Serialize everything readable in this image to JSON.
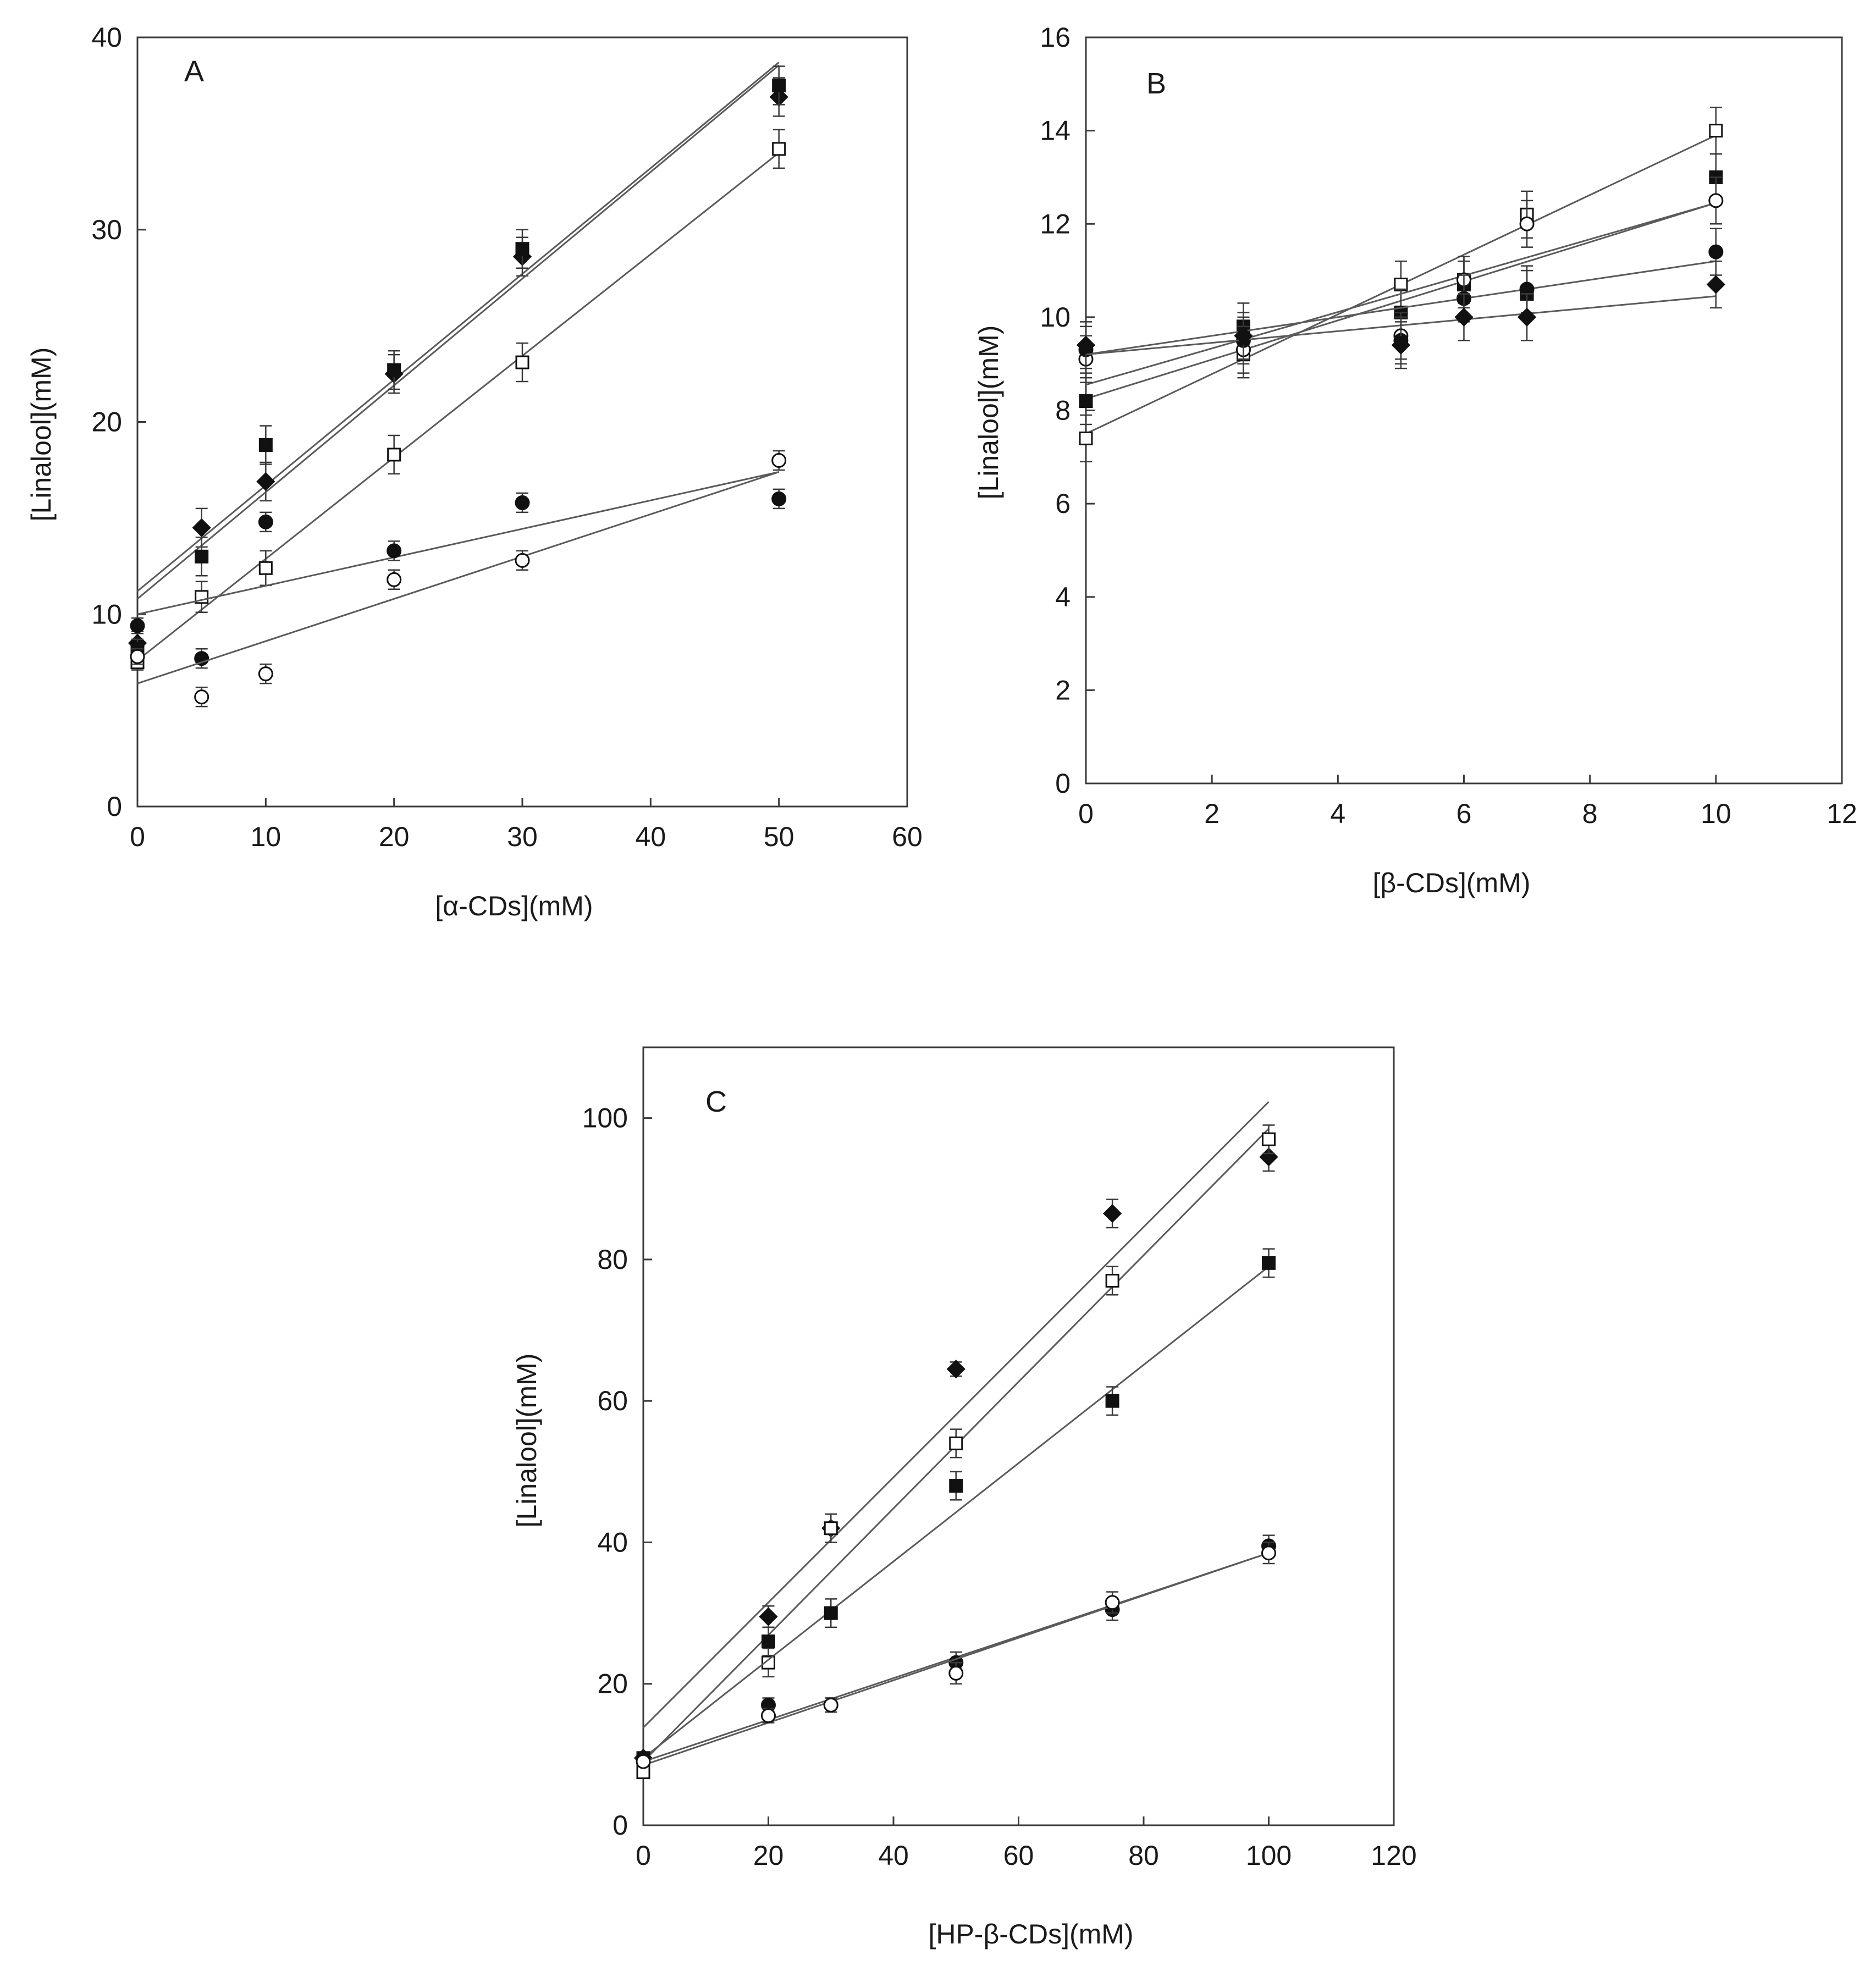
{
  "chart_data": [
    {
      "type": "scatter",
      "panel": "A",
      "xlabel": "[α-CDs](mM)",
      "ylabel": "[Linalool](mM)",
      "xlim": [
        0,
        60
      ],
      "ylim": [
        0,
        40
      ],
      "xticks": [
        0,
        10,
        20,
        30,
        40,
        50,
        60
      ],
      "yticks": [
        0,
        10,
        20,
        30,
        40
      ],
      "grid": false,
      "series": [
        {
          "name": "filled-diamond",
          "marker": "diamond",
          "filled": true,
          "x": [
            0,
            5,
            10,
            20,
            30,
            50
          ],
          "y": [
            8.5,
            14.5,
            16.9,
            22.5,
            28.6,
            36.9
          ],
          "err": [
            0.6,
            1.0,
            1.0,
            1.0,
            1.0,
            1.0
          ],
          "fit": [
            11.2,
            0.55
          ]
        },
        {
          "name": "filled-square",
          "marker": "square",
          "filled": true,
          "x": [
            0,
            5,
            10,
            20,
            30,
            50
          ],
          "y": [
            8.2,
            13.0,
            18.8,
            22.7,
            29.0,
            37.5
          ],
          "err": [
            0.5,
            1.0,
            1.0,
            1.0,
            1.0,
            1.0
          ],
          "fit": [
            10.8,
            0.555
          ]
        },
        {
          "name": "open-square",
          "marker": "square",
          "filled": false,
          "x": [
            0,
            5,
            10,
            20,
            30,
            50
          ],
          "y": [
            7.5,
            10.9,
            12.4,
            18.3,
            23.1,
            34.2
          ],
          "err": [
            0.4,
            0.8,
            0.9,
            1.0,
            1.0,
            1.0
          ],
          "fit": [
            7.6,
            0.528
          ]
        },
        {
          "name": "filled-circle",
          "marker": "circle",
          "filled": true,
          "x": [
            0,
            5,
            10,
            20,
            30,
            50
          ],
          "y": [
            9.4,
            7.7,
            14.8,
            13.3,
            15.8,
            16.0
          ],
          "err": [
            0.4,
            0.5,
            0.5,
            0.5,
            0.5,
            0.5
          ],
          "fit": [
            10.0,
            0.148
          ]
        },
        {
          "name": "open-circle",
          "marker": "circle",
          "filled": false,
          "x": [
            0,
            5,
            10,
            20,
            30,
            50
          ],
          "y": [
            7.8,
            5.7,
            6.9,
            11.8,
            12.8,
            18.0
          ],
          "err": [
            0.4,
            0.5,
            0.5,
            0.5,
            0.5,
            0.5
          ],
          "fit": [
            6.4,
            0.22
          ]
        }
      ]
    },
    {
      "type": "scatter",
      "panel": "B",
      "xlabel": "[β-CDs](mM)",
      "ylabel": "[Linalool](mM)",
      "xlim": [
        0,
        12
      ],
      "ylim": [
        0,
        16
      ],
      "xticks": [
        0,
        2,
        4,
        6,
        8,
        10,
        12
      ],
      "yticks": [
        0,
        2,
        4,
        6,
        8,
        10,
        12,
        14,
        16
      ],
      "grid": false,
      "series": [
        {
          "name": "open-square",
          "marker": "square",
          "filled": false,
          "x": [
            0,
            2.5,
            5,
            6,
            7,
            10
          ],
          "y": [
            7.4,
            9.2,
            10.7,
            10.8,
            12.2,
            14.0
          ],
          "err": [
            0.5,
            0.5,
            0.5,
            0.5,
            0.5,
            0.5
          ],
          "fit": [
            7.5,
            0.64
          ]
        },
        {
          "name": "filled-square",
          "marker": "square",
          "filled": true,
          "x": [
            0,
            2.5,
            5,
            6,
            7,
            10
          ],
          "y": [
            8.2,
            9.8,
            10.1,
            10.7,
            10.5,
            13.0
          ],
          "err": [
            0.5,
            0.5,
            0.5,
            0.5,
            0.5,
            0.5
          ],
          "fit": [
            8.25,
            0.42
          ]
        },
        {
          "name": "open-circle",
          "marker": "circle",
          "filled": false,
          "x": [
            0,
            2.5,
            5,
            6,
            7,
            10
          ],
          "y": [
            9.1,
            9.3,
            9.6,
            10.8,
            12.0,
            12.5
          ],
          "err": [
            0.5,
            0.5,
            0.5,
            0.5,
            0.5,
            0.5
          ],
          "fit": [
            8.55,
            0.39
          ]
        },
        {
          "name": "filled-circle",
          "marker": "circle",
          "filled": true,
          "x": [
            0,
            2.5,
            5,
            6,
            7,
            10
          ],
          "y": [
            9.3,
            9.5,
            9.5,
            10.4,
            10.6,
            11.4
          ],
          "err": [
            0.5,
            0.5,
            0.5,
            0.5,
            0.5,
            0.5
          ],
          "fit": [
            9.2,
            0.2
          ]
        },
        {
          "name": "filled-diamond",
          "marker": "diamond",
          "filled": true,
          "x": [
            0,
            2.5,
            5,
            6,
            7,
            10
          ],
          "y": [
            9.4,
            9.6,
            9.4,
            10.0,
            10.0,
            10.7
          ],
          "err": [
            0.5,
            0.5,
            0.5,
            0.5,
            0.5,
            0.5
          ],
          "fit": [
            9.2,
            0.125
          ]
        }
      ]
    },
    {
      "type": "scatter",
      "panel": "C",
      "xlabel": "[HP-β-CDs](mM)",
      "ylabel": "[Linalool](mM)",
      "xlim": [
        0,
        120
      ],
      "ylim": [
        0,
        110
      ],
      "xticks": [
        0,
        20,
        40,
        60,
        80,
        100,
        120
      ],
      "yticks": [
        0,
        20,
        40,
        60,
        80,
        100
      ],
      "grid": false,
      "series": [
        {
          "name": "filled-diamond",
          "marker": "diamond",
          "filled": true,
          "x": [
            0,
            20,
            30,
            50,
            75,
            100
          ],
          "y": [
            9.5,
            29.5,
            42.0,
            64.5,
            86.5,
            94.5
          ],
          "err": [
            0.8,
            1.5,
            2.0,
            1.0,
            2.0,
            2.0
          ],
          "fit": [
            13.8,
            0.885
          ]
        },
        {
          "name": "open-square",
          "marker": "square",
          "filled": false,
          "x": [
            0,
            20,
            30,
            50,
            75,
            100
          ],
          "y": [
            7.5,
            23.0,
            42.0,
            54.0,
            77.0,
            97.0
          ],
          "err": [
            0.8,
            2.0,
            2.0,
            2.0,
            2.0,
            2.0
          ],
          "fit": [
            9.0,
            0.895
          ]
        },
        {
          "name": "filled-square",
          "marker": "square",
          "filled": true,
          "x": [
            0,
            20,
            30,
            50,
            75,
            100
          ],
          "y": [
            9.5,
            26.0,
            30.0,
            48.0,
            60.0,
            79.5
          ],
          "err": [
            0.8,
            2.0,
            2.0,
            2.0,
            2.0,
            2.0
          ],
          "fit": [
            9.5,
            0.695
          ]
        },
        {
          "name": "filled-circle",
          "marker": "circle",
          "filled": true,
          "x": [
            0,
            20,
            30,
            50,
            75,
            100
          ],
          "y": [
            9.5,
            17.0,
            17.0,
            23.0,
            30.5,
            39.5
          ],
          "err": [
            0.5,
            1.0,
            1.0,
            1.5,
            1.5,
            1.5
          ],
          "fit": [
            9.0,
            0.295
          ]
        },
        {
          "name": "open-circle",
          "marker": "circle",
          "filled": false,
          "x": [
            0,
            20,
            30,
            50,
            75,
            100
          ],
          "y": [
            9.0,
            15.5,
            17.0,
            21.5,
            31.5,
            38.5
          ],
          "err": [
            0.5,
            1.0,
            1.0,
            1.5,
            1.5,
            1.5
          ],
          "fit": [
            8.5,
            0.3
          ]
        }
      ]
    }
  ]
}
